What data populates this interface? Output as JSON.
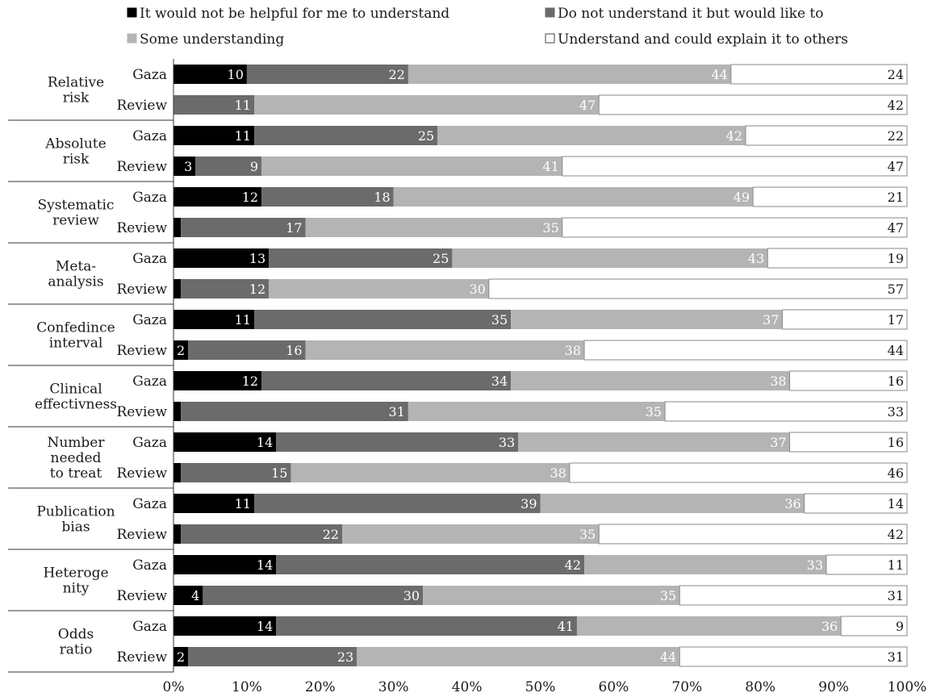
{
  "chart_data": {
    "type": "bar",
    "stacked": true,
    "orientation": "horizontal",
    "percent_stacked": true,
    "grid": false,
    "legend_position": "top",
    "series": [
      {
        "name": "It would not be helpful for me to understand",
        "color": "#000000",
        "label_color": "#ffffff"
      },
      {
        "name": "Do not understand it but would like to",
        "color": "#6b6b6b",
        "label_color": "#ffffff"
      },
      {
        "name": "Some understanding",
        "color": "#b4b4b4",
        "label_color": "#ffffff"
      },
      {
        "name": "Understand and could explain it to others",
        "color": "#ffffff",
        "label_color": "#1a1a1a"
      }
    ],
    "groups": [
      {
        "label": "Relative\nrisk",
        "rows": [
          {
            "label": "Gaza",
            "values": [
              10,
              22,
              44,
              24
            ],
            "labels": [
              "10",
              "22",
              "44",
              "24"
            ]
          },
          {
            "label": "Review",
            "values": [
              0,
              11,
              47,
              42
            ],
            "labels": [
              "",
              "11",
              "47",
              "42"
            ]
          }
        ]
      },
      {
        "label": "Absolute\nrisk",
        "rows": [
          {
            "label": "Gaza",
            "values": [
              11,
              25,
              42,
              22
            ],
            "labels": [
              "11",
              "25",
              "42",
              "22"
            ]
          },
          {
            "label": "Review",
            "values": [
              3,
              9,
              41,
              47
            ],
            "labels": [
              "3",
              "9",
              "41",
              "47"
            ]
          }
        ]
      },
      {
        "label": "Systematic\nreview",
        "rows": [
          {
            "label": "Gaza",
            "values": [
              12,
              18,
              49,
              21
            ],
            "labels": [
              "12",
              "18",
              "49",
              "21"
            ]
          },
          {
            "label": "Review",
            "values": [
              1,
              17,
              35,
              47
            ],
            "labels": [
              "",
              "17",
              "35",
              "47"
            ]
          }
        ]
      },
      {
        "label": "Meta-\nanalysis",
        "rows": [
          {
            "label": "Gaza",
            "values": [
              13,
              25,
              43,
              19
            ],
            "labels": [
              "13",
              "25",
              "43",
              "19"
            ]
          },
          {
            "label": "Review",
            "values": [
              1,
              12,
              30,
              57
            ],
            "labels": [
              "",
              "12",
              "30",
              "57"
            ]
          }
        ]
      },
      {
        "label": "Confedince\ninterval",
        "rows": [
          {
            "label": "Gaza",
            "values": [
              11,
              35,
              37,
              17
            ],
            "labels": [
              "11",
              "35",
              "37",
              "17"
            ]
          },
          {
            "label": "Review",
            "values": [
              2,
              16,
              38,
              44
            ],
            "labels": [
              "2",
              "16",
              "38",
              "44"
            ]
          }
        ]
      },
      {
        "label": "Clinical\neffectivness",
        "rows": [
          {
            "label": "Gaza",
            "values": [
              12,
              34,
              38,
              16
            ],
            "labels": [
              "12",
              "34",
              "38",
              "16"
            ]
          },
          {
            "label": "Review",
            "values": [
              1,
              31,
              35,
              33
            ],
            "labels": [
              "",
              "31",
              "35",
              "33"
            ]
          }
        ]
      },
      {
        "label": "Number\nneeded\nto treat",
        "rows": [
          {
            "label": "Gaza",
            "values": [
              14,
              33,
              37,
              16
            ],
            "labels": [
              "14",
              "33",
              "37",
              "16"
            ]
          },
          {
            "label": "Review",
            "values": [
              1,
              15,
              38,
              46
            ],
            "labels": [
              "",
              "15",
              "38",
              "46"
            ]
          }
        ]
      },
      {
        "label": "Publication\nbias",
        "rows": [
          {
            "label": "Gaza",
            "values": [
              11,
              39,
              36,
              14
            ],
            "labels": [
              "11",
              "39",
              "36",
              "14"
            ]
          },
          {
            "label": "Review",
            "values": [
              1,
              22,
              35,
              42
            ],
            "labels": [
              "",
              "22",
              "35",
              "42"
            ]
          }
        ]
      },
      {
        "label": "Heteroge\nnity",
        "rows": [
          {
            "label": "Gaza",
            "values": [
              14,
              42,
              33,
              11
            ],
            "labels": [
              "14",
              "42",
              "33",
              "11"
            ]
          },
          {
            "label": "Review",
            "values": [
              4,
              30,
              35,
              31
            ],
            "labels": [
              "4",
              "30",
              "35",
              "31"
            ]
          }
        ]
      },
      {
        "label": "Odds\nratio",
        "rows": [
          {
            "label": "Gaza",
            "values": [
              14,
              41,
              36,
              9
            ],
            "labels": [
              "14",
              "41",
              "36",
              "9"
            ]
          },
          {
            "label": "Review",
            "values": [
              2,
              23,
              44,
              31
            ],
            "labels": [
              "2",
              "23",
              "44",
              "31"
            ]
          }
        ]
      }
    ],
    "x_ticks": [
      "0%",
      "10%",
      "20%",
      "30%",
      "40%",
      "50%",
      "60%",
      "70%",
      "80%",
      "90%",
      "100%"
    ],
    "xlim": [
      0,
      100
    ]
  }
}
